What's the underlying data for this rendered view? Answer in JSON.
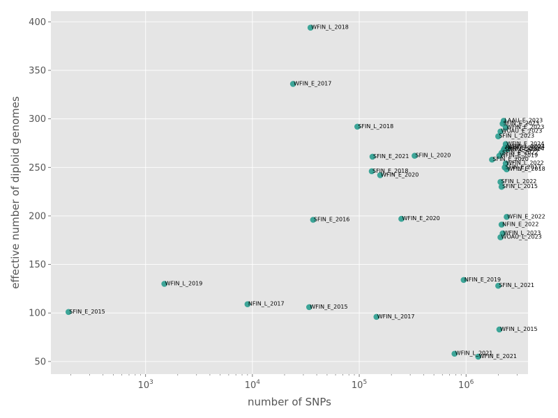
{
  "chart_data": {
    "type": "scatter",
    "title": "",
    "xlabel": "number of SNPs",
    "ylabel": "effective number of diploid genomes",
    "xscale": "log",
    "xlim": [
      130,
      3800000
    ],
    "ylim": [
      37,
      411
    ],
    "xticks": [
      {
        "value": 1000,
        "label": "10",
        "exp": "3"
      },
      {
        "value": 10000,
        "label": "10",
        "exp": "4"
      },
      {
        "value": 100000,
        "label": "10",
        "exp": "5"
      },
      {
        "value": 1000000,
        "label": "10",
        "exp": "6"
      }
    ],
    "yticks": [
      50,
      100,
      150,
      200,
      250,
      300,
      350,
      400
    ],
    "grid": true,
    "legend": "none",
    "style": {
      "background": "#e5e5e5",
      "grid": "#ffffff",
      "point_color": "#2a9d8f"
    },
    "points": [
      {
        "label": "WFIN_L_2018",
        "x": 35000,
        "y": 394
      },
      {
        "label": "WFIN_E_2017",
        "x": 24000,
        "y": 336
      },
      {
        "label": "SFIN_L_2018",
        "x": 96000,
        "y": 292
      },
      {
        "label": "SFIN_E_2021",
        "x": 133000,
        "y": 261
      },
      {
        "label": "SFIN_L_2020",
        "x": 330000,
        "y": 262
      },
      {
        "label": "SFIN_E_2018",
        "x": 131000,
        "y": 246
      },
      {
        "label": "WFIN_E_2020",
        "x": 157000,
        "y": 242
      },
      {
        "label": "SFIN_E_2016",
        "x": 37000,
        "y": 196
      },
      {
        "label": "WFIN_E_2020",
        "x": 248000,
        "y": 197
      },
      {
        "label": "WFIN_L_2019",
        "x": 1500,
        "y": 130
      },
      {
        "label": "SFIN_E_2015",
        "x": 190,
        "y": 101
      },
      {
        "label": "NFIN_L_2017",
        "x": 9000,
        "y": 109
      },
      {
        "label": "WFIN_E_2015",
        "x": 34000,
        "y": 106
      },
      {
        "label": "WFIN_L_2017",
        "x": 145000,
        "y": 96
      },
      {
        "label": "NFIN_E_2019",
        "x": 950000,
        "y": 134
      },
      {
        "label": "SFIN_L_2021",
        "x": 2000000,
        "y": 128
      },
      {
        "label": "WFIN_L_2015",
        "x": 2050000,
        "y": 83
      },
      {
        "label": "WFIN_L_2021",
        "x": 780000,
        "y": 58
      },
      {
        "label": "WFIN_E_2021",
        "x": 1300000,
        "y": 55
      },
      {
        "label": "LAAU_E_2023",
        "x": 2250000,
        "y": 298
      },
      {
        "label": "SFIN_E_2023",
        "x": 2200000,
        "y": 295
      },
      {
        "label": "WFIN_E_2023",
        "x": 2350000,
        "y": 291
      },
      {
        "label": "WOAU_E_2023",
        "x": 2100000,
        "y": 287
      },
      {
        "label": "SFIN_L_2023",
        "x": 2000000,
        "y": 282
      },
      {
        "label": "WFIN_E_2024",
        "x": 2350000,
        "y": 274
      },
      {
        "label": "WFIN_L_2024",
        "x": 2400000,
        "y": 271
      },
      {
        "label": "NFIN_E_2024",
        "x": 2300000,
        "y": 270
      },
      {
        "label": "SFIN_L_2024",
        "x": 2250000,
        "y": 268
      },
      {
        "label": "SFIN_E_2024",
        "x": 2450000,
        "y": 269
      },
      {
        "label": "SFIN_E_2022",
        "x": 2150000,
        "y": 265
      },
      {
        "label": "WFIN_E_2019",
        "x": 2050000,
        "y": 262
      },
      {
        "label": "SFIN_E_2020",
        "x": 1750000,
        "y": 258
      },
      {
        "label": "WFIN_L_2022",
        "x": 2350000,
        "y": 254
      },
      {
        "label": "SFIN_E_2017",
        "x": 2300000,
        "y": 250
      },
      {
        "label": "WFIN_E_2018",
        "x": 2400000,
        "y": 248
      },
      {
        "label": "SFIN_L_2022",
        "x": 2100000,
        "y": 235
      },
      {
        "label": "SFIN_L_2015",
        "x": 2150000,
        "y": 230
      },
      {
        "label": "WFIN_E_2022",
        "x": 2400000,
        "y": 199
      },
      {
        "label": "NFIN_E_2022",
        "x": 2150000,
        "y": 191
      },
      {
        "label": "WFIN_L_2023",
        "x": 2200000,
        "y": 182
      },
      {
        "label": "WOAU_L_2023",
        "x": 2100000,
        "y": 178
      }
    ]
  }
}
